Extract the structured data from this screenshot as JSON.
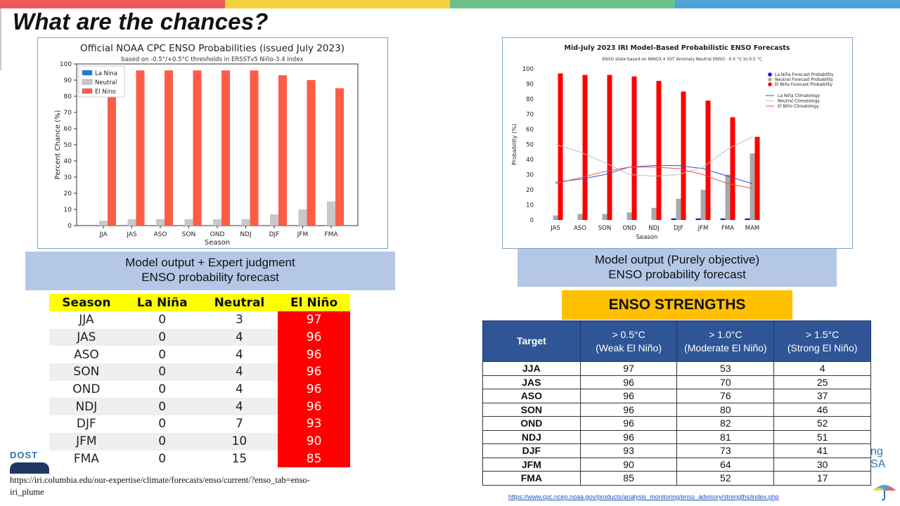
{
  "slide": {
    "title": "What are the chances?",
    "band_colors": [
      "#ee5a5a",
      "#f5d13b",
      "#6cc08a",
      "#4fa3d9"
    ]
  },
  "cpc_chart": {
    "chart_data": {
      "type": "bar",
      "title": "Official NOAA CPC ENSO Probabilities (issued July 2023)",
      "subtitle": "based on -0.5°/+0.5°C thresholds in ERSSTv5 Niño-3.4 index",
      "xlabel": "Season",
      "ylabel": "Percent Chance (%)",
      "ylim": [
        0,
        100
      ],
      "yticks": [
        0,
        10,
        20,
        30,
        40,
        50,
        60,
        70,
        80,
        90,
        100
      ],
      "legend_position": "top-left",
      "categories": [
        "JJA",
        "JAS",
        "ASO",
        "SON",
        "OND",
        "NDJ",
        "DJF",
        "JFM",
        "FMA"
      ],
      "series": [
        {
          "name": "La Nina",
          "color": "#1f77e8",
          "values": [
            0,
            0,
            0,
            0,
            0,
            0,
            0,
            0,
            0
          ]
        },
        {
          "name": "Neutral",
          "color": "#c8c8c8",
          "values": [
            3,
            4,
            4,
            4,
            4,
            4,
            7,
            10,
            15
          ]
        },
        {
          "name": "El Nino",
          "color": "#ff5c45",
          "values": [
            97,
            96,
            96,
            96,
            96,
            96,
            93,
            90,
            85
          ]
        }
      ]
    }
  },
  "iri_chart": {
    "chart_data": {
      "type": "bar",
      "title": "Mid-July 2023 IRI Model-Based Probabilistic ENSO Forecasts",
      "subtitle": "ENSO state based on NINO3.4 SST Anomaly Neutral ENSO: -0.5 °C to 0.5 °C",
      "xlabel": "Season",
      "ylabel": "Probability (%)",
      "ylim": [
        0,
        100
      ],
      "yticks": [
        0,
        10,
        20,
        30,
        40,
        50,
        60,
        70,
        80,
        90,
        100
      ],
      "legend_position": "right",
      "categories": [
        "JAS",
        "ASO",
        "SON",
        "OND",
        "NDJ",
        "DJF",
        "JFM",
        "FMA",
        "MAM"
      ],
      "series": [
        {
          "name": "La Niña Forecast Probability",
          "color": "#1010d0",
          "values": [
            0,
            0,
            0,
            0,
            0,
            1,
            1,
            1,
            1
          ]
        },
        {
          "name": "Neutral Forecast Probability",
          "color": "#a8a8a8",
          "values": [
            3,
            4,
            4,
            5,
            8,
            14,
            20,
            30,
            44
          ]
        },
        {
          "name": "El Niño Forecast Probability",
          "color": "#ff0000",
          "values": [
            97,
            96,
            96,
            95,
            92,
            85,
            79,
            68,
            55
          ]
        }
      ],
      "climatology": [
        {
          "name": "La Niña Climatology",
          "color": "#3050d0",
          "values": [
            25,
            27,
            30,
            35,
            36,
            36,
            34,
            29,
            24
          ]
        },
        {
          "name": "Neutral Climatology",
          "color": "#c0c0c0",
          "values": [
            50,
            45,
            38,
            30,
            29,
            30,
            35,
            47,
            55
          ]
        },
        {
          "name": "El Niño Climatology",
          "color": "#f05050",
          "values": [
            24,
            28,
            32,
            35,
            35,
            34,
            30,
            24,
            21
          ]
        }
      ]
    }
  },
  "caption_left": {
    "line1": "Model output + Expert judgment",
    "line2": "ENSO probability forecast"
  },
  "caption_right": {
    "line1": "Model output (Purely objective)",
    "line2": "ENSO probability forecast"
  },
  "prob_table": {
    "headers": [
      "Season",
      "La Niña",
      "Neutral",
      "El Niño"
    ],
    "rows": [
      [
        "JJA",
        "0",
        "3",
        "97"
      ],
      [
        "JAS",
        "0",
        "4",
        "96"
      ],
      [
        "ASO",
        "0",
        "4",
        "96"
      ],
      [
        "SON",
        "0",
        "4",
        "96"
      ],
      [
        "OND",
        "0",
        "4",
        "96"
      ],
      [
        "NDJ",
        "0",
        "4",
        "96"
      ],
      [
        "DJF",
        "0",
        "7",
        "93"
      ],
      [
        "JFM",
        "0",
        "10",
        "90"
      ],
      [
        "FMA",
        "0",
        "15",
        "85"
      ]
    ]
  },
  "strengths": {
    "banner": "ENSO STRENGTHS",
    "headers": [
      {
        "line1": "Target",
        "line2": ""
      },
      {
        "line1": "> 0.5°C",
        "line2": "(Weak El Niño)"
      },
      {
        "line1": "> 1.0°C",
        "line2": "(Moderate El Niño)"
      },
      {
        "line1": "> 1.5°C",
        "line2": "(Strong El Niño)"
      }
    ],
    "rows": [
      [
        "JJA",
        "97",
        "53",
        "4"
      ],
      [
        "JAS",
        "96",
        "70",
        "25"
      ],
      [
        "ASO",
        "96",
        "76",
        "37"
      ],
      [
        "SON",
        "96",
        "80",
        "46"
      ],
      [
        "OND",
        "96",
        "82",
        "52"
      ],
      [
        "NDJ",
        "96",
        "81",
        "51"
      ],
      [
        "DJF",
        "93",
        "73",
        "41"
      ],
      [
        "JFM",
        "90",
        "64",
        "30"
      ],
      [
        "FMA",
        "85",
        "52",
        "17"
      ]
    ]
  },
  "sources": {
    "left": "https://iri.columbia.edu/our-expertise/climate/forecasts/enso/current/?enso_tab=enso-iri_plume",
    "right": "https://www.cpc.ncep.noaa.gov/products/analysis_monitoring/enso_advisory/strengths/index.php"
  },
  "logos": {
    "left_text": "DOST",
    "right_text1": "ng",
    "right_text2": "SA"
  }
}
